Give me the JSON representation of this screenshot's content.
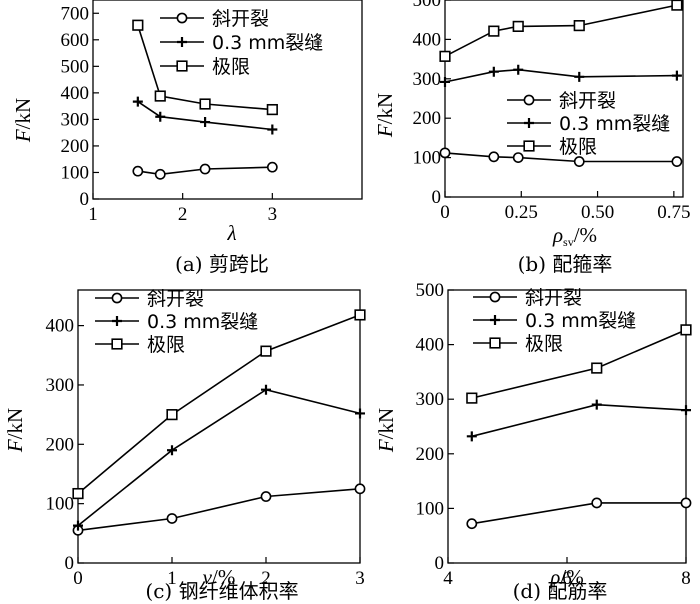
{
  "chart_data": [
    {
      "type": "line",
      "caption": "(a) 剪跨比",
      "xlabel": "λ",
      "ylabel": "F/kN",
      "xlim": [
        1,
        4
      ],
      "ylim": [
        0,
        750
      ],
      "xticks": [
        1,
        2,
        3
      ],
      "yticks": [
        0,
        100,
        200,
        300,
        400,
        500,
        600,
        700
      ],
      "legend_position": "top-right",
      "series": [
        {
          "name": "斜开裂",
          "marker": "circle",
          "x": [
            1.5,
            1.75,
            2.25,
            3.0
          ],
          "y": [
            105,
            93,
            113,
            120
          ]
        },
        {
          "name": "0.3 mm裂缝",
          "marker": "plus",
          "x": [
            1.5,
            1.75,
            2.25,
            3.0
          ],
          "y": [
            367,
            310,
            290,
            262
          ]
        },
        {
          "name": "极限",
          "marker": "square",
          "x": [
            1.5,
            1.75,
            2.25,
            3.0
          ],
          "y": [
            655,
            388,
            358,
            337
          ]
        }
      ]
    },
    {
      "type": "line",
      "caption": "(b) 配箍率",
      "xlabel": "ρ",
      "xlabel_sub": "sv",
      "xlabel_tail": "/%",
      "ylabel": "F/kN",
      "xlim": [
        0,
        0.78
      ],
      "ylim": [
        0,
        500
      ],
      "xticks": [
        0,
        0.25,
        0.5,
        0.75
      ],
      "xtick_labels": [
        "0",
        "0.25",
        "0.50",
        "0.75"
      ],
      "yticks": [
        0,
        100,
        200,
        300,
        400,
        500
      ],
      "legend_position": "middle-right",
      "series": [
        {
          "name": "斜开裂",
          "marker": "circle",
          "x": [
            0,
            0.16,
            0.24,
            0.44,
            0.76
          ],
          "y": [
            112,
            102,
            100,
            90,
            90
          ]
        },
        {
          "name": "0.3 mm裂缝",
          "marker": "plus",
          "x": [
            0,
            0.16,
            0.24,
            0.44,
            0.76
          ],
          "y": [
            292,
            318,
            323,
            305,
            308
          ]
        },
        {
          "name": "极限",
          "marker": "square",
          "x": [
            0,
            0.16,
            0.24,
            0.44,
            0.76
          ],
          "y": [
            357,
            421,
            433,
            435,
            487
          ]
        }
      ]
    },
    {
      "type": "line",
      "caption": "(c) 钢纤维体积率",
      "xlabel": "v/%",
      "ylabel": "F/kN",
      "xlim": [
        0,
        3
      ],
      "ylim": [
        0,
        460
      ],
      "xticks": [
        0,
        1,
        2,
        3
      ],
      "yticks": [
        0,
        100,
        200,
        300,
        400
      ],
      "legend_position": "top-left",
      "series": [
        {
          "name": "斜开裂",
          "marker": "circle",
          "x": [
            0,
            1,
            2,
            3
          ],
          "y": [
            55,
            75,
            112,
            125
          ]
        },
        {
          "name": "0.3 mm裂缝",
          "marker": "plus",
          "x": [
            0,
            1,
            2,
            3
          ],
          "y": [
            63,
            190,
            292,
            252
          ]
        },
        {
          "name": "极限",
          "marker": "square",
          "x": [
            0,
            1,
            2,
            3
          ],
          "y": [
            117,
            250,
            357,
            418
          ]
        }
      ]
    },
    {
      "type": "line",
      "caption": "(d) 配筋率",
      "xlabel": "ρ/%",
      "ylabel": "F/kN",
      "xlim": [
        4,
        8
      ],
      "ylim": [
        0,
        500
      ],
      "xticks": [
        4,
        6,
        8
      ],
      "yticks": [
        0,
        100,
        200,
        300,
        400,
        500
      ],
      "legend_position": "top-center",
      "series": [
        {
          "name": "斜开裂",
          "marker": "circle",
          "x": [
            4.4,
            6.5,
            8.0
          ],
          "y": [
            72,
            110,
            110
          ]
        },
        {
          "name": "0.3 mm裂缝",
          "marker": "plus",
          "x": [
            4.4,
            6.5,
            8.0
          ],
          "y": [
            232,
            290,
            280
          ]
        },
        {
          "name": "极限",
          "marker": "square",
          "x": [
            4.4,
            6.5,
            8.0
          ],
          "y": [
            302,
            357,
            427
          ]
        }
      ]
    }
  ]
}
